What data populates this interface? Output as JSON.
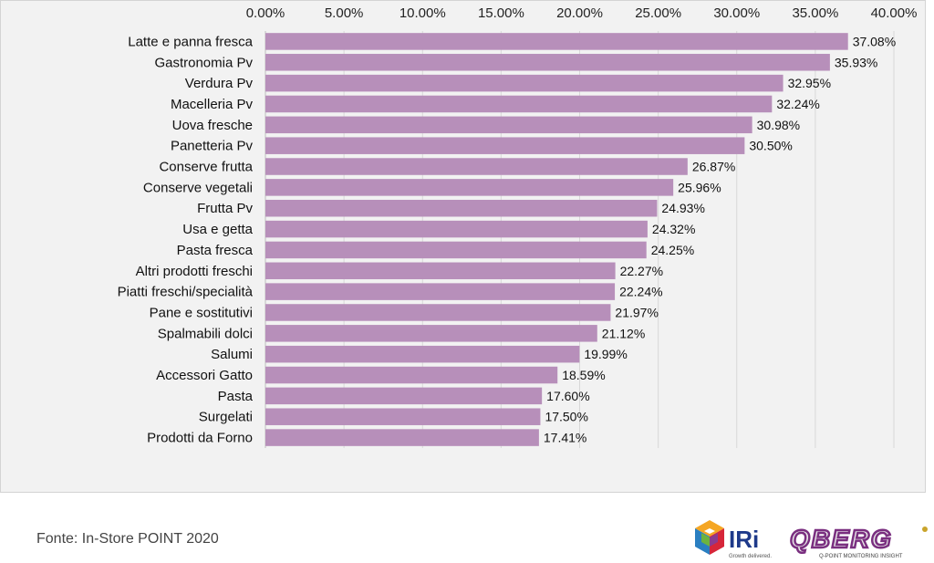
{
  "chart_data": {
    "type": "bar",
    "orientation": "horizontal",
    "categories": [
      "Latte e panna fresca",
      "Gastronomia Pv",
      "Verdura Pv",
      "Macelleria Pv",
      "Uova fresche",
      "Panetteria Pv",
      "Conserve frutta",
      "Conserve vegetali",
      "Frutta Pv",
      "Usa e getta",
      "Pasta fresca",
      "Altri prodotti freschi",
      "Piatti freschi/specialità",
      "Pane e sostitutivi",
      "Spalmabili dolci",
      "Salumi",
      "Accessori Gatto",
      "Pasta",
      "Surgelati",
      "Prodotti da Forno"
    ],
    "values": [
      37.08,
      35.93,
      32.95,
      32.24,
      30.98,
      30.5,
      26.87,
      25.96,
      24.93,
      24.32,
      24.25,
      22.27,
      22.24,
      21.97,
      21.12,
      19.99,
      18.59,
      17.6,
      17.5,
      17.41
    ],
    "value_labels": [
      "37.08%",
      "35.93%",
      "32.95%",
      "32.24%",
      "30.98%",
      "30.50%",
      "26.87%",
      "25.96%",
      "24.93%",
      "24.32%",
      "24.25%",
      "22.27%",
      "22.24%",
      "21.97%",
      "21.12%",
      "19.99%",
      "18.59%",
      "17.60%",
      "17.50%",
      "17.41%"
    ],
    "xlim": [
      0,
      40
    ],
    "x_ticks": [
      0,
      5,
      10,
      15,
      20,
      25,
      30,
      35,
      40
    ],
    "x_tick_labels": [
      "0.00%",
      "5.00%",
      "10.00%",
      "15.00%",
      "20.00%",
      "25.00%",
      "30.00%",
      "35.00%",
      "40.00%"
    ],
    "x_axis_position": "top",
    "grid": "vertical",
    "legend": "none",
    "title": "",
    "xlabel": "",
    "ylabel": "",
    "bar_color": "#b78fba",
    "grid_color": "#d8d8d8",
    "background_color": "#f2f2f2"
  },
  "footer": {
    "source": "Fonte: In-Store POINT 2020"
  },
  "logos": {
    "iri": {
      "icon": "iri-cube-logo",
      "text": "IRi",
      "tagline": "Growth delivered."
    },
    "qberg": {
      "icon": "qberg-logo",
      "text": "QBERG",
      "tagline": "Q-POINT MONITORING INSIGHT"
    }
  }
}
